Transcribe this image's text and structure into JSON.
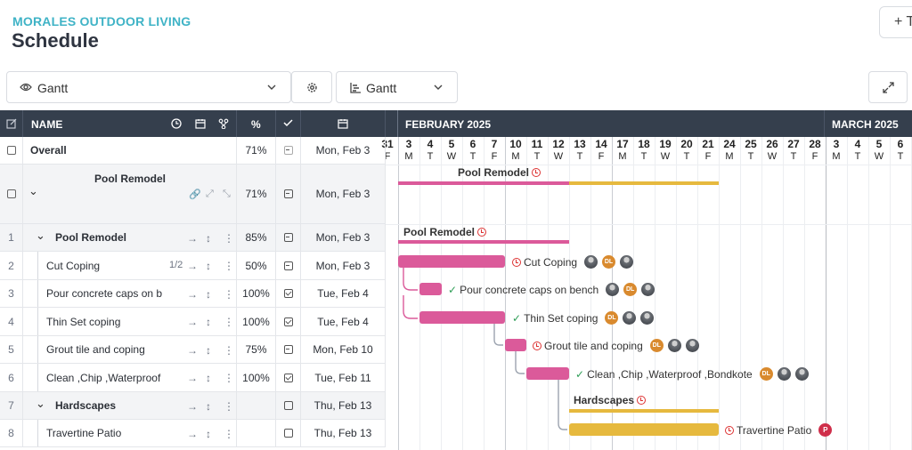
{
  "header": {
    "company": "MORALES OUTDOOR LIVING",
    "title": "Schedule",
    "top_button": "+ T"
  },
  "controls": {
    "view_select": "Gantt",
    "chart_select": "Gantt"
  },
  "columns": {
    "name": "NAME",
    "percent": "%"
  },
  "timeline": {
    "months": [
      {
        "label": "FEBRUARY 2025"
      },
      {
        "label": "MARCH 2025"
      }
    ],
    "days": [
      {
        "d": "31",
        "w": "F"
      },
      {
        "d": "3",
        "w": "M"
      },
      {
        "d": "4",
        "w": "T"
      },
      {
        "d": "5",
        "w": "W"
      },
      {
        "d": "6",
        "w": "T"
      },
      {
        "d": "7",
        "w": "F"
      },
      {
        "d": "10",
        "w": "M"
      },
      {
        "d": "11",
        "w": "T"
      },
      {
        "d": "12",
        "w": "W"
      },
      {
        "d": "13",
        "w": "T"
      },
      {
        "d": "14",
        "w": "F"
      },
      {
        "d": "17",
        "w": "M"
      },
      {
        "d": "18",
        "w": "T"
      },
      {
        "d": "19",
        "w": "W"
      },
      {
        "d": "20",
        "w": "T"
      },
      {
        "d": "21",
        "w": "F"
      },
      {
        "d": "24",
        "w": "M"
      },
      {
        "d": "25",
        "w": "T"
      },
      {
        "d": "26",
        "w": "W"
      },
      {
        "d": "27",
        "w": "T"
      },
      {
        "d": "28",
        "w": "F"
      },
      {
        "d": "3",
        "w": "M"
      },
      {
        "d": "4",
        "w": "T"
      },
      {
        "d": "5",
        "w": "W"
      },
      {
        "d": "6",
        "w": "T"
      }
    ]
  },
  "rows": [
    {
      "num": "",
      "name": "Overall",
      "pct": "71%",
      "check": "minus",
      "date": "Mon, Feb 3"
    },
    {
      "num": "",
      "name": "Pool Remodel",
      "pct": "71%",
      "check": "minus",
      "date": "Mon, Feb 3"
    },
    {
      "num": "1",
      "name": "Pool Remodel",
      "pct": "85%",
      "check": "minus",
      "date": "Mon, Feb 3"
    },
    {
      "num": "2",
      "name": "Cut Coping",
      "sub": "1/2",
      "pct": "50%",
      "check": "minus",
      "date": "Mon, Feb 3"
    },
    {
      "num": "3",
      "name": "Pour concrete caps on bench",
      "pct": "100%",
      "check": "tick",
      "date": "Tue, Feb 4"
    },
    {
      "num": "4",
      "name": "Thin Set coping",
      "pct": "100%",
      "check": "tick",
      "date": "Tue, Feb 4"
    },
    {
      "num": "5",
      "name": "Grout tile and coping",
      "pct": "75%",
      "check": "minus",
      "date": "Mon, Feb 10"
    },
    {
      "num": "6",
      "name": "Clean ,Chip ,Waterproof ,Bondkote",
      "pct": "100%",
      "check": "tick",
      "date": "Tue, Feb 11"
    },
    {
      "num": "7",
      "name": "Hardscapes",
      "pct": "",
      "check": "empty",
      "date": "Thu, Feb 13"
    },
    {
      "num": "8",
      "name": "Travertine Patio",
      "pct": "",
      "check": "empty",
      "date": "Thu, Feb 13"
    }
  ],
  "gantt": {
    "project_label": "Pool Remodel",
    "group_label": "Pool Remodel",
    "hardscapes_label": "Hardscapes",
    "tasks": [
      {
        "label": "Cut Coping",
        "avatars": [
          "img",
          "DL",
          "img"
        ]
      },
      {
        "label": "Pour concrete caps on bench",
        "avatars": [
          "img",
          "DL",
          "img"
        ]
      },
      {
        "label": "Thin Set coping",
        "avatars": [
          "DL",
          "img",
          "img"
        ]
      },
      {
        "label": "Grout tile and coping",
        "avatars": [
          "DL",
          "img",
          "img"
        ]
      },
      {
        "label": "Clean ,Chip ,Waterproof ,Bondkote",
        "avatars": [
          "DL",
          "img",
          "img"
        ]
      },
      {
        "label": "Travertine Patio",
        "avatars": [
          "P"
        ]
      }
    ]
  },
  "colors": {
    "accent": "#3fb3c6",
    "header_bg": "#353f4d",
    "pink": "#db5a9a",
    "gold": "#e6b93e"
  }
}
